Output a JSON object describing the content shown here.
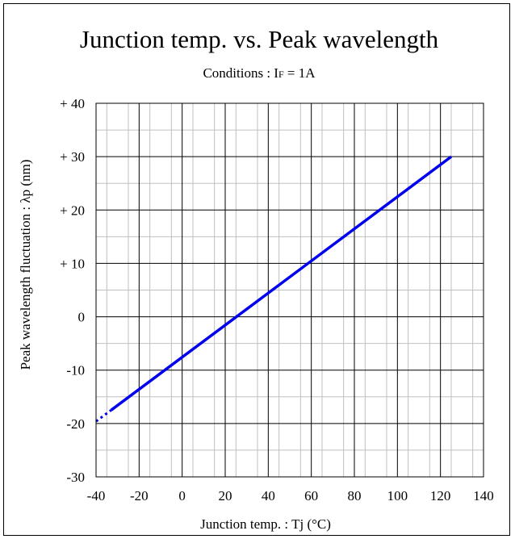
{
  "chart_data": {
    "type": "line",
    "title": "Junction temp. vs. Peak wavelength",
    "subtitle": "Conditions : IF = 1A",
    "subtitle_parts": [
      "Conditions : I",
      "F",
      " = 1A"
    ],
    "xlabel": "Junction temp. : Tj  (°C)",
    "ylabel": "Peak wavelength fluctuation : λp (nm)",
    "xlim": [
      -40,
      140
    ],
    "ylim": [
      -30,
      40
    ],
    "x_ticks": [
      -40,
      -20,
      0,
      20,
      40,
      60,
      80,
      100,
      120,
      140
    ],
    "y_ticks": [
      -30,
      -20,
      -10,
      0,
      10,
      20,
      30,
      40
    ],
    "x_tick_labels": [
      "-40",
      "-20",
      "0",
      "20",
      "40",
      "60",
      "80",
      "100",
      "120",
      "140"
    ],
    "y_tick_labels": [
      "-30",
      "-20",
      "-10",
      "0",
      "+ 10",
      "+ 20",
      "+ 30",
      "+ 40"
    ],
    "grid": true,
    "minor_grid": true,
    "series": [
      {
        "line_style": "solid",
        "color": "#0000ee",
        "x": [
          -33,
          125
        ],
        "y": [
          -17.5,
          30
        ]
      },
      {
        "line_style": "dotted",
        "color": "#0000ee",
        "x": [
          -40,
          -33
        ],
        "y": [
          -19.6,
          -17.5
        ]
      }
    ]
  }
}
